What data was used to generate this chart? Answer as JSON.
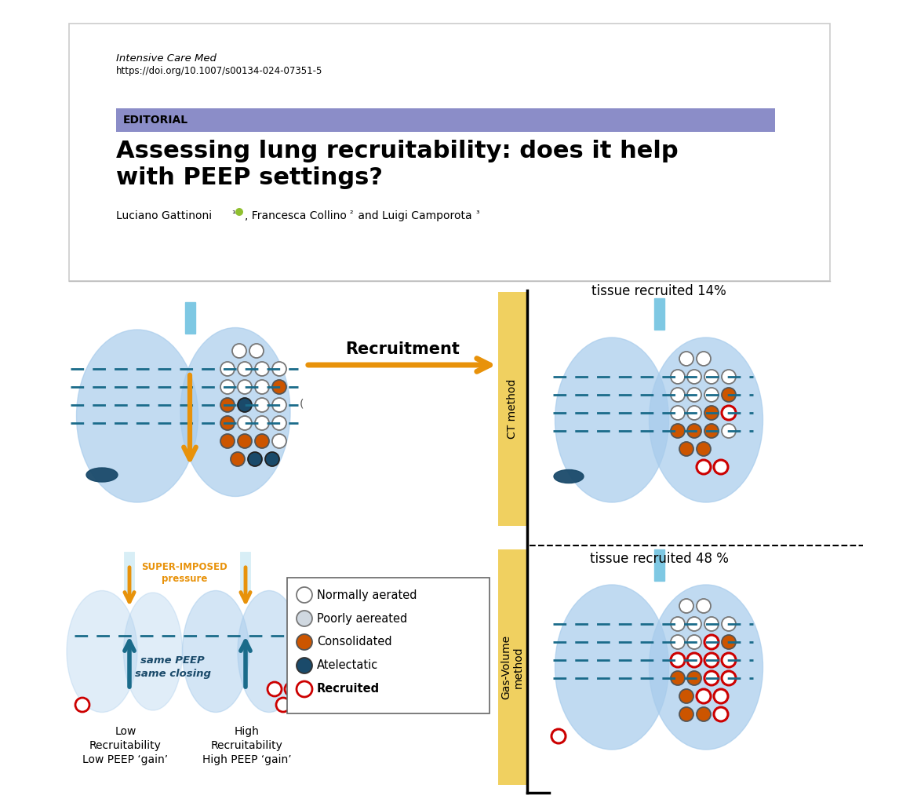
{
  "journal_text": "Intensive Care Med",
  "doi_text": "https://doi.org/10.1007/s00134-024-07351-5",
  "editorial_text": "EDITORIAL",
  "editorial_bg": "#8B8DC8",
  "title_line1": "Assessing lung recruitability: does it help",
  "title_line2": "with PEEP settings?",
  "recruitment_label": "Recruitment",
  "ct_method_label": "CT method",
  "gas_volume_label": "Gas-Volume\nmethod",
  "tissue_recruited_14": "tissue recruited 14%",
  "tissue_recruited_48": "tissue recruited 48 %",
  "arrow_color": "#E8920A",
  "lung_blue": "#A8CCEC",
  "lung_blue_dark": "#7EAECE",
  "trachea_color": "#7EC8E3",
  "dashed_line_color": "#1A6B8A",
  "circle_white_fill": "#FFFFFF",
  "circle_gray_fill": "#D0D8E0",
  "circle_orange_fill": "#CC5500",
  "circle_dark_fill": "#1A4A6A",
  "circle_recruited_stroke": "#CC0000",
  "label_low_recruitability": "Low\nRecruitability\nLow PEEP ‘gain’",
  "label_high_recruitability": "High\nRecruitability\nHigh PEEP ‘gain’",
  "legend_items": [
    "Normally aerated",
    "Poorly aereated",
    "Consolidated",
    "Atelectatic",
    "Recruited"
  ],
  "super_imposed_text": "SUPER-IMPOSED\npressure",
  "same_peep_text": "same PEEP\nsame closing",
  "bg_color": "#FFFFFF",
  "method_box_color": "#F0D060",
  "header_border_color": "#CCCCCC"
}
